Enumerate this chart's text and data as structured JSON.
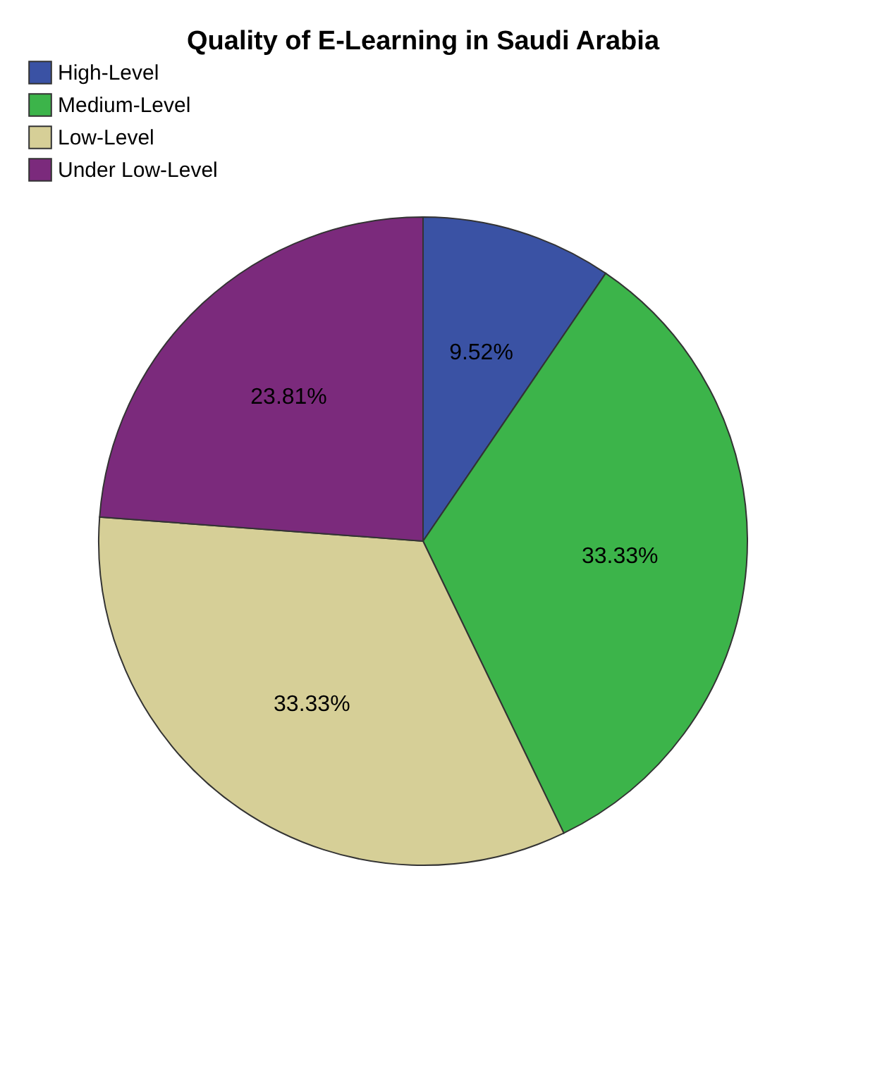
{
  "chart_data": {
    "type": "pie",
    "title": "Quality of E-Learning in Saudi Arabia",
    "categories": [
      "High-Level",
      "Medium-Level",
      "Low-Level",
      "Under Low-Level"
    ],
    "values": [
      9.52,
      33.33,
      33.33,
      23.81
    ],
    "value_labels": [
      "9.52%",
      "33.33%",
      "33.33%",
      "23.81%"
    ],
    "colors": [
      "#3a52a4",
      "#3cb44a",
      "#d6cf97",
      "#7b2a7c"
    ],
    "legend": "top"
  }
}
